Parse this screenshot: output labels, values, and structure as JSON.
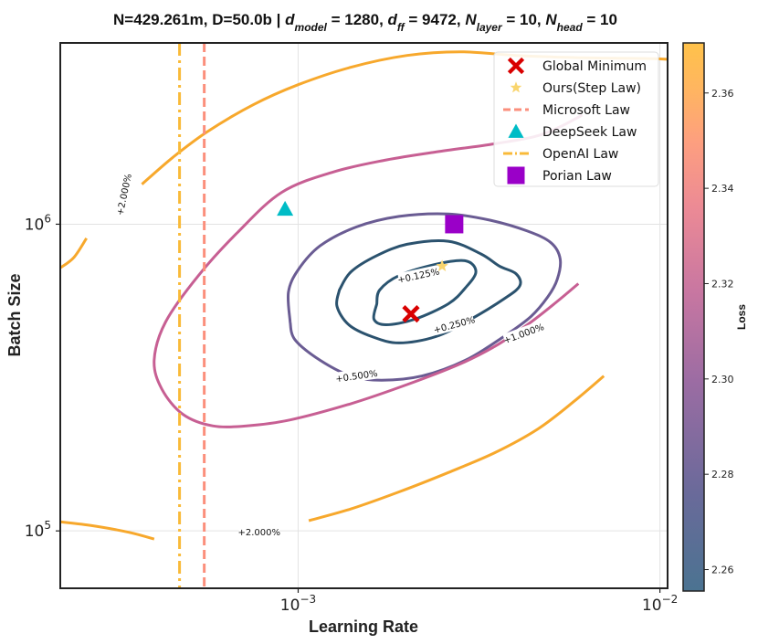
{
  "chart_data": {
    "type": "contour",
    "title": {
      "parts": [
        {
          "text": "N=429.261m, D=50.0b | ",
          "italic": false
        },
        {
          "text": "d",
          "italic": true
        },
        {
          "text": "model",
          "italic": true,
          "sub": true
        },
        {
          "text": " = 1280, ",
          "italic": false
        },
        {
          "text": "d",
          "italic": true
        },
        {
          "text": "ff",
          "italic": true,
          "sub": true
        },
        {
          "text": " = 9472, ",
          "italic": false
        },
        {
          "text": "N",
          "italic": true
        },
        {
          "text": "layer",
          "italic": true,
          "sub": true
        },
        {
          "text": " = 10, ",
          "italic": false
        },
        {
          "text": "N",
          "italic": true
        },
        {
          "text": "head",
          "italic": true,
          "sub": true
        },
        {
          "text": " = 10",
          "italic": false
        }
      ]
    },
    "xlabel": "Learning Rate",
    "ylabel": "Batch Size",
    "xscale": "log",
    "yscale": "log",
    "xlim": [
      0.00022,
      0.0105
    ],
    "ylim": [
      65000,
      3900000
    ],
    "x_ticks": [
      {
        "value": 0.001,
        "base": "10",
        "exp": "−3"
      },
      {
        "value": 0.01,
        "base": "10",
        "exp": "−2"
      }
    ],
    "y_ticks": [
      {
        "value": 100000,
        "base": "10",
        "exp": "5"
      },
      {
        "value": 1000000,
        "base": "10",
        "exp": "6"
      }
    ],
    "grid": true,
    "colorbar": {
      "label": "Loss",
      "range": [
        2.2555,
        2.3705
      ],
      "ticks": [
        "2.26",
        "2.28",
        "2.30",
        "2.32",
        "2.34",
        "2.36"
      ],
      "tick_values": [
        2.26,
        2.28,
        2.3,
        2.32,
        2.34,
        2.36
      ],
      "colors": [
        "#4b7391",
        "#6a6a9a",
        "#9b6ca3",
        "#c977a1",
        "#ec8a95",
        "#fd9f7f",
        "#ffb65f",
        "#ffc24a"
      ]
    },
    "contour_levels": [
      {
        "label": "+0.125%",
        "color": "#2a5470",
        "label_at": [
          0.00215,
          0.00068
        ],
        "label_angle": -12,
        "points": [
          [
            0.00165,
            0.00055
          ],
          [
            0.00162,
            0.00049
          ],
          [
            0.00175,
            0.00047
          ],
          [
            0.0021,
            0.00049
          ],
          [
            0.0026,
            0.00055
          ],
          [
            0.0029,
            0.00062
          ],
          [
            0.0031,
            0.0007
          ],
          [
            0.0029,
            0.00076
          ],
          [
            0.0024,
            0.00074
          ],
          [
            0.0019,
            0.00068
          ],
          [
            0.00168,
            0.00061
          ],
          [
            0.00165,
            0.00055
          ]
        ]
      },
      {
        "label": "+0.250%",
        "color": "#2b526e",
        "label_at": [
          0.0027,
          0.00047
        ],
        "label_angle": -15,
        "points": [
          [
            0.0013,
            0.00061
          ],
          [
            0.00128,
            0.00054
          ],
          [
            0.00138,
            0.00047
          ],
          [
            0.0016,
            0.00043
          ],
          [
            0.0019,
            0.00041
          ],
          [
            0.0024,
            0.00043
          ],
          [
            0.003,
            0.00049
          ],
          [
            0.0037,
            0.00057
          ],
          [
            0.0041,
            0.00063
          ],
          [
            0.004,
            0.00069
          ],
          [
            0.0036,
            0.00073
          ],
          [
            0.0032,
            0.0008
          ],
          [
            0.0026,
            0.00088
          ],
          [
            0.002,
            0.00086
          ],
          [
            0.00165,
            0.00079
          ],
          [
            0.0014,
            0.0007
          ],
          [
            0.0013,
            0.00061
          ]
        ]
      },
      {
        "label": "+0.500%",
        "color": "#6a5c93",
        "label_at": [
          0.00145,
          0.00032
        ],
        "label_angle": -8,
        "points": [
          [
            0.00095,
            0.00048
          ],
          [
            0.00098,
            0.00042
          ],
          [
            0.00115,
            0.00036
          ],
          [
            0.0014,
            0.00032
          ],
          [
            0.0017,
            0.00031
          ],
          [
            0.0022,
            0.00032
          ],
          [
            0.0029,
            0.00036
          ],
          [
            0.0037,
            0.00043
          ],
          [
            0.0044,
            0.0005
          ],
          [
            0.0049,
            0.00058
          ],
          [
            0.0052,
            0.00066
          ],
          [
            0.0053,
            0.00077
          ],
          [
            0.005,
            0.00087
          ],
          [
            0.0043,
            0.00095
          ],
          [
            0.0034,
            0.00103
          ],
          [
            0.0026,
            0.00108
          ],
          [
            0.0019,
            0.00106
          ],
          [
            0.00145,
            0.00098
          ],
          [
            0.00115,
            0.00085
          ],
          [
            0.001,
            0.00071
          ],
          [
            0.00094,
            0.0006
          ],
          [
            0.00095,
            0.00048
          ]
        ]
      },
      {
        "label": "+1.000%",
        "color": "#c75f93",
        "label_at": [
          0.0042,
          0.00044
        ],
        "label_angle": -20,
        "open": true,
        "points": [
          [
            0.00595,
            0.00064
          ],
          [
            0.0052,
            0.00056
          ],
          [
            0.0043,
            0.00047
          ],
          [
            0.0035,
            0.0004
          ],
          [
            0.0028,
            0.00035
          ],
          [
            0.002,
            0.0003
          ],
          [
            0.0014,
            0.00026
          ],
          [
            0.00095,
            0.00023
          ],
          [
            0.00072,
            0.00022
          ],
          [
            0.00058,
            0.00022
          ],
          [
            0.00048,
            0.00024
          ],
          [
            0.00042,
            0.00029
          ],
          [
            0.0004,
            0.00036
          ],
          [
            0.00043,
            0.00048
          ],
          [
            0.00053,
            0.00068
          ],
          [
            0.00068,
            0.00094
          ],
          [
            0.0009,
            0.00127
          ],
          [
            0.00125,
            0.00148
          ],
          [
            0.00175,
            0.00162
          ],
          [
            0.0024,
            0.00172
          ],
          [
            0.0034,
            0.00182
          ],
          [
            0.0045,
            0.00193
          ],
          [
            0.0053,
            0.00208
          ],
          [
            0.0061,
            0.00227
          ]
        ]
      },
      {
        "label": "+2.000%",
        "color": "#f7a82c",
        "label_at": [
          0.00033,
          0.00125
        ],
        "label_angle": -78,
        "open": true,
        "points": [
          [
            0.00022,
            0.00072
          ],
          [
            0.00024,
            0.00078
          ],
          [
            0.00026,
            0.0009
          ]
        ]
      },
      {
        "label": "",
        "color": "#f7a82c",
        "open": true,
        "points": [
          [
            0.00037,
            0.00135
          ],
          [
            0.00045,
            0.00165
          ],
          [
            0.00056,
            0.002
          ],
          [
            0.00075,
            0.00245
          ],
          [
            0.001,
            0.00285
          ],
          [
            0.0014,
            0.00325
          ],
          [
            0.002,
            0.00355
          ],
          [
            0.0028,
            0.00365
          ],
          [
            0.004,
            0.00355
          ],
          [
            0.0055,
            0.0035
          ],
          [
            0.007,
            0.00348
          ],
          [
            0.009,
            0.00347
          ],
          [
            0.0105,
            0.00345
          ]
        ]
      },
      {
        "label": "+2.000%",
        "color": "#f7a82c",
        "label_at": [
          0.00078,
          9.9e-05
        ],
        "label_angle": 0,
        "open": true,
        "points": [
          [
            0.00022,
            0.000107
          ],
          [
            0.00027,
            0.000104
          ],
          [
            0.00034,
            9.9e-05
          ],
          [
            0.0004,
            9.4e-05
          ]
        ]
      },
      {
        "label": "",
        "color": "#f7a82c",
        "open": true,
        "points": [
          [
            0.00107,
            0.000108
          ],
          [
            0.0014,
            0.000118
          ],
          [
            0.0019,
            0.000134
          ],
          [
            0.0026,
            0.000155
          ],
          [
            0.0035,
            0.00018
          ],
          [
            0.0046,
            0.000215
          ],
          [
            0.0058,
            0.000265
          ],
          [
            0.007,
            0.00032
          ]
        ]
      }
    ],
    "series": [
      {
        "name": "Global Minimum",
        "marker": "X",
        "color": "#d90000",
        "x": 0.00205,
        "y": 510000
      },
      {
        "name": "Ours(Step Law)",
        "marker": "star",
        "color": "#f9d56e",
        "x": 0.0025,
        "y": 730000
      },
      {
        "name": "Microsoft Law",
        "marker": "vline-dashed",
        "color": "#fb8f7c",
        "x": 0.00055
      },
      {
        "name": "DeepSeek Law",
        "marker": "triangle",
        "color": "#00bcc6",
        "x": 0.00092,
        "y": 1120000
      },
      {
        "name": "OpenAI Law",
        "marker": "vline-dashdot",
        "color": "#f9ba39",
        "x": 0.00047
      },
      {
        "name": "Porian Law",
        "marker": "square",
        "color": "#9a00c8",
        "x": 0.0027,
        "y": 1000000
      }
    ],
    "legend_position": "top-right"
  }
}
